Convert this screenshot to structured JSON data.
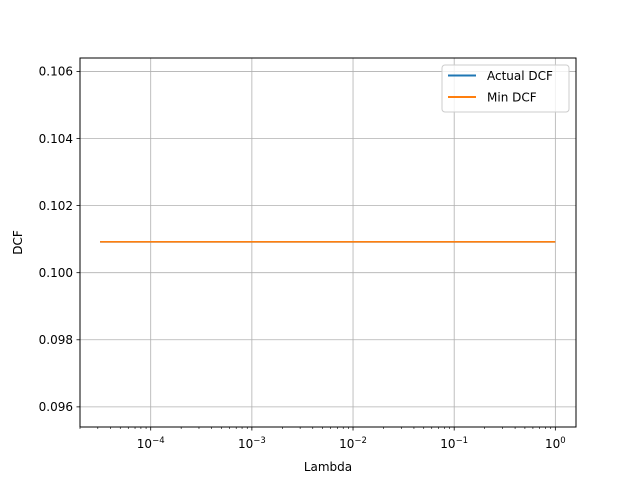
{
  "chart_data": {
    "type": "line",
    "title": "",
    "xlabel": "Lambda",
    "ylabel": "DCF",
    "xscale": "log",
    "xlim": [
      2e-05,
      1.6
    ],
    "ylim": [
      0.0954,
      0.1064
    ],
    "grid": true,
    "legend_position": "top-right",
    "x_major_ticks": [
      {
        "value": 0.0001,
        "base": "10",
        "exponent": "−4"
      },
      {
        "value": 0.001,
        "base": "10",
        "exponent": "−3"
      },
      {
        "value": 0.01,
        "base": "10",
        "exponent": "−2"
      },
      {
        "value": 0.1,
        "base": "10",
        "exponent": "−1"
      },
      {
        "value": 1,
        "base": "10",
        "exponent": "0"
      }
    ],
    "y_ticks": [
      {
        "value": 0.096,
        "label": "0.096"
      },
      {
        "value": 0.098,
        "label": "0.098"
      },
      {
        "value": 0.1,
        "label": "0.100"
      },
      {
        "value": 0.102,
        "label": "0.102"
      },
      {
        "value": 0.104,
        "label": "0.104"
      },
      {
        "value": 0.106,
        "label": "0.106"
      }
    ],
    "x": [
      3.16e-05,
      0.0001,
      0.000316,
      0.001,
      0.00316,
      0.01,
      0.0316,
      0.1,
      0.316,
      1.0
    ],
    "series": [
      {
        "name": "Actual DCF",
        "color": "#1f77b4",
        "values": [
          0.10092,
          0.10092,
          0.10092,
          0.10092,
          0.10092,
          0.10092,
          0.10092,
          0.10092,
          0.10092,
          0.10092
        ]
      },
      {
        "name": "Min DCF",
        "color": "#ff7f0e",
        "values": [
          0.10092,
          0.10092,
          0.10092,
          0.10092,
          0.10092,
          0.10092,
          0.10092,
          0.10092,
          0.10092,
          0.10092
        ]
      }
    ]
  }
}
